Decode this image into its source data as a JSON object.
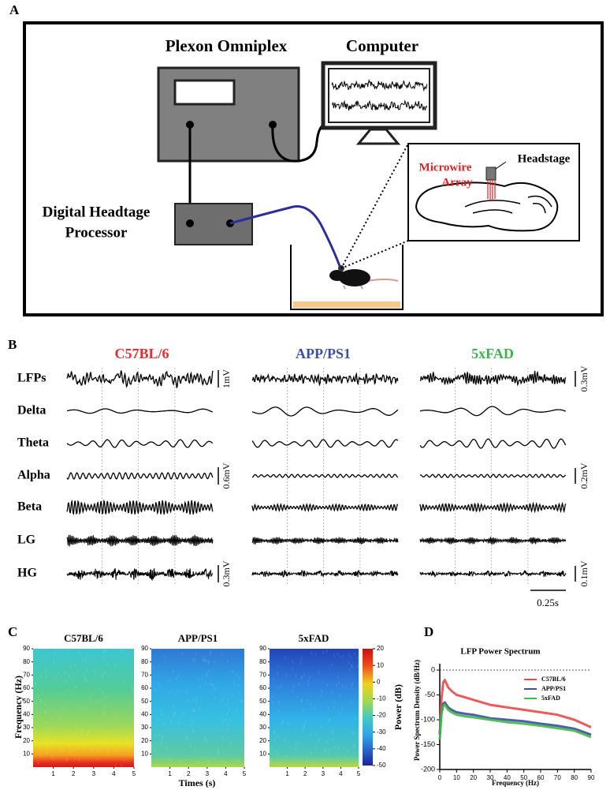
{
  "panel_labels": [
    "A",
    "B",
    "C",
    "D"
  ],
  "setup": {
    "omniplex": "Plexon Omniplex",
    "computer": "Computer",
    "processor": [
      "Digital Headtage",
      "Processor"
    ],
    "headstage": "Headstage",
    "microwire": [
      "Microwire",
      "Array"
    ]
  },
  "recordings": {
    "groups": [
      {
        "name": "C57BL/6",
        "color": "#e53030"
      },
      {
        "name": "APP/PS1",
        "color": "#3b4fa3"
      },
      {
        "name": "5xFAD",
        "color": "#3cb44a"
      }
    ],
    "bands": [
      "LFPs",
      "Delta",
      "Theta",
      "Alpha",
      "Beta",
      "LG",
      "HG"
    ],
    "scale_bars_left": [
      "1mV",
      "0.6mV",
      "0.3mV"
    ],
    "scale_bars_right": [
      "0.3mV",
      "0.2mV",
      "0.1mV"
    ],
    "time_bar": "0.25s"
  },
  "spectrograms": {
    "titles": [
      "C57BL/6",
      "APP/PS1",
      "5xFAD"
    ],
    "ylabel": "Frequency (Hz)",
    "xlabel": "Times (s)",
    "ylim": [
      0,
      90
    ],
    "yticks": [
      10,
      20,
      30,
      40,
      50,
      60,
      70,
      80,
      90
    ],
    "xlim": [
      0,
      5
    ],
    "xticks": [
      1,
      2,
      3,
      4,
      5
    ],
    "colorbar": {
      "label": "Power (dB)",
      "lim": [
        -50,
        20
      ],
      "ticks": [
        20,
        10,
        0,
        -10,
        -20,
        -30,
        -40,
        -50
      ]
    }
  },
  "chart_data": {
    "type": "line",
    "title": "LFP Power Spectrum",
    "xlabel": "Frequency (Hz)",
    "ylabel": "Power Spectrum Density (dB/Hz)",
    "x": [
      0,
      1,
      2,
      3,
      5,
      7,
      10,
      15,
      20,
      30,
      40,
      50,
      60,
      70,
      80,
      90
    ],
    "series": [
      {
        "name": "C57BL/6",
        "color": "#e84a4a",
        "values": [
          -130,
          -60,
          -25,
          -20,
          -35,
          -42,
          -50,
          -55,
          -60,
          -70,
          -75,
          -80,
          -85,
          -90,
          -100,
          -115
        ]
      },
      {
        "name": "APP/PS1",
        "color": "#3b4fa3",
        "values": [
          -130,
          -85,
          -68,
          -65,
          -75,
          -80,
          -85,
          -88,
          -90,
          -97,
          -100,
          -103,
          -108,
          -112,
          -118,
          -130
        ]
      },
      {
        "name": "5xFAD",
        "color": "#44b84a",
        "values": [
          -140,
          -90,
          -72,
          -70,
          -80,
          -85,
          -90,
          -93,
          -95,
          -100,
          -105,
          -108,
          -112,
          -117,
          -122,
          -135
        ]
      }
    ],
    "xlim": [
      0,
      90
    ],
    "ylim": [
      -200,
      0
    ],
    "xticks": [
      0,
      10,
      20,
      30,
      40,
      50,
      60,
      70,
      80,
      90
    ],
    "yticks": [
      0,
      -50,
      -100,
      -150,
      -200
    ],
    "legend": "upper right"
  }
}
